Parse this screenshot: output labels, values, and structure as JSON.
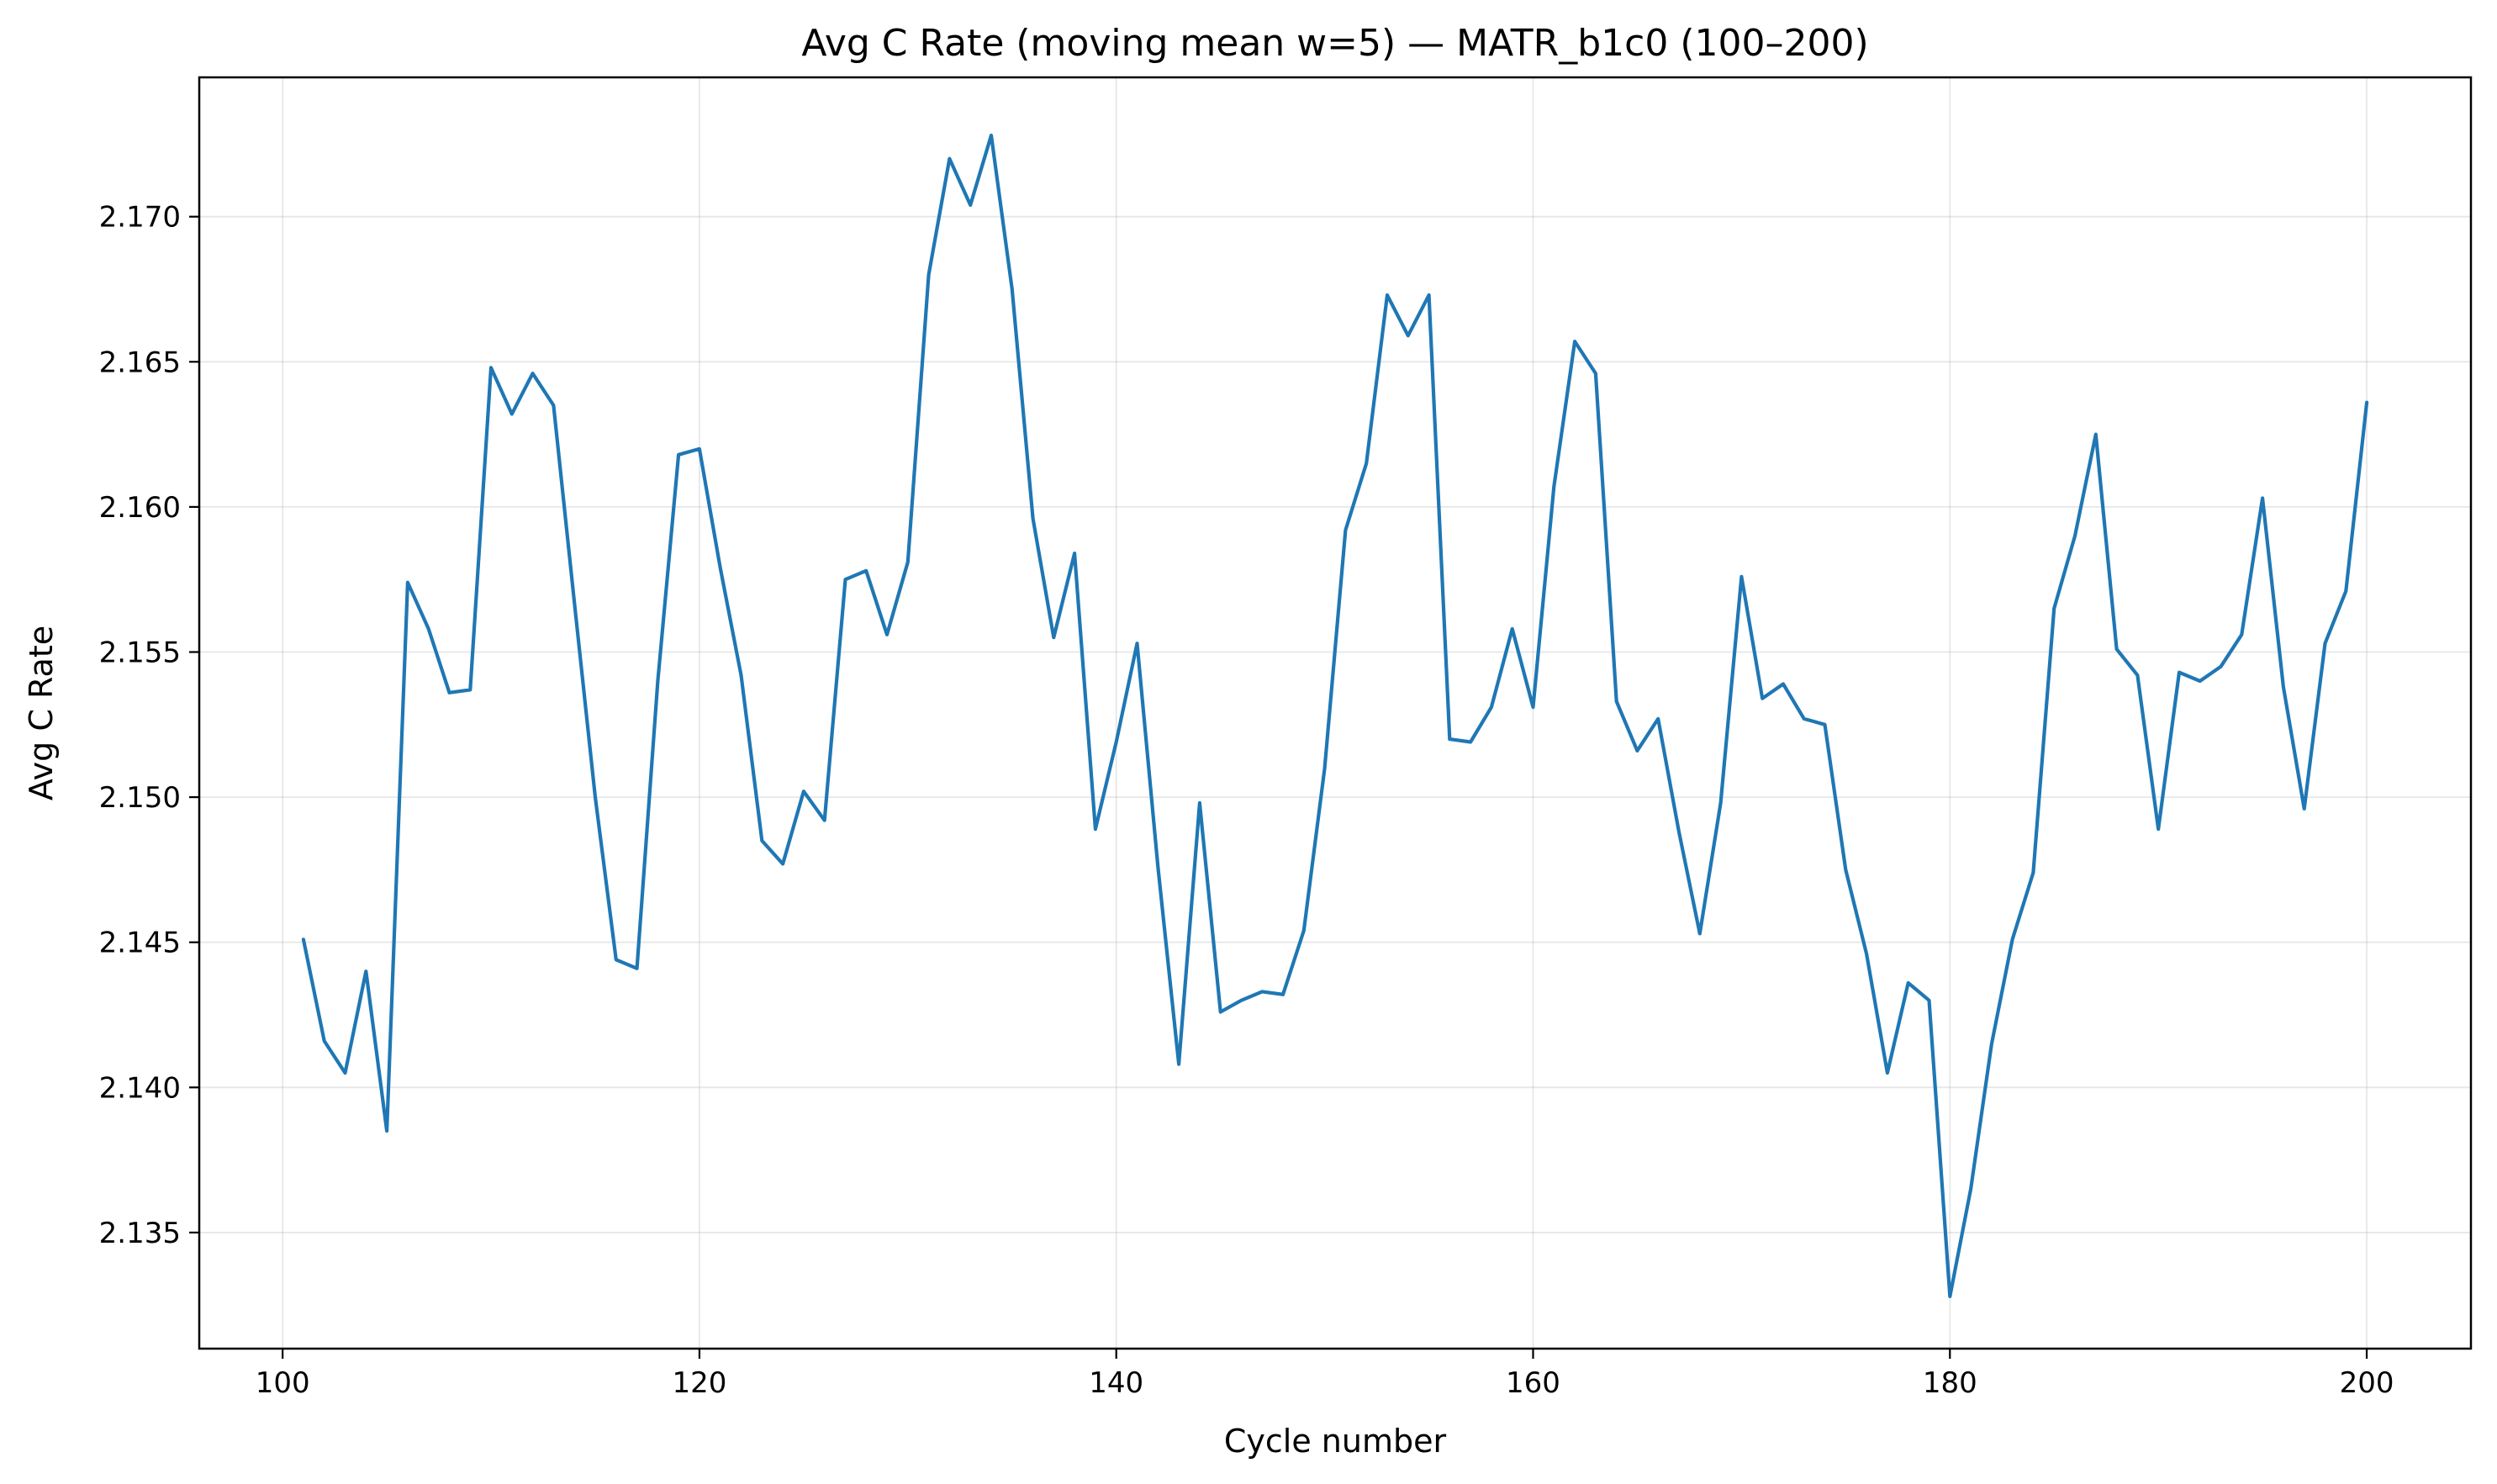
{
  "chart_data": {
    "type": "line",
    "title": "Avg C Rate (moving mean w=5) — MATR_b1c0 (100–200)",
    "xlabel": "Cycle number",
    "ylabel": "Avg C Rate",
    "xlim": [
      96,
      205
    ],
    "ylim": [
      2.131,
      2.1748
    ],
    "x_ticks": [
      100,
      120,
      140,
      160,
      180,
      200
    ],
    "x_tick_labels": [
      "100",
      "120",
      "140",
      "160",
      "180",
      "200"
    ],
    "y_ticks": [
      2.135,
      2.14,
      2.145,
      2.15,
      2.155,
      2.16,
      2.165,
      2.17
    ],
    "y_tick_labels": [
      "2.135",
      "2.140",
      "2.145",
      "2.150",
      "2.155",
      "2.160",
      "2.165",
      "2.170"
    ],
    "grid": true,
    "line_color": "#1f77b4",
    "series": [
      {
        "x": [
          101,
          102,
          103,
          104,
          105,
          106,
          107,
          108,
          109,
          110,
          111,
          112,
          113,
          114,
          115,
          116,
          117,
          118,
          119,
          120,
          121,
          122,
          123,
          124,
          125,
          126,
          127,
          128,
          129,
          130,
          131,
          132,
          133,
          134,
          135,
          136,
          137,
          138,
          139,
          140,
          141,
          142,
          143,
          144,
          145,
          146,
          147,
          148,
          149,
          150,
          151,
          152,
          153,
          154,
          155,
          156,
          157,
          158,
          159,
          160,
          161,
          162,
          163,
          164,
          165,
          166,
          167,
          168,
          169,
          170,
          171,
          172,
          173,
          174,
          175,
          176,
          177,
          178,
          179,
          180,
          181,
          182,
          183,
          184,
          185,
          186,
          187,
          188,
          189,
          190,
          191,
          192,
          193,
          194,
          195,
          196,
          197,
          198,
          199,
          200
        ],
        "values": [
          2.1451,
          2.1416,
          2.1405,
          2.144,
          2.1385,
          2.1574,
          2.1558,
          2.1536,
          2.1537,
          2.1648,
          2.1632,
          2.1646,
          2.1635,
          2.1567,
          2.15,
          2.1444,
          2.1441,
          2.154,
          2.1618,
          2.162,
          2.1579,
          2.1542,
          2.1485,
          2.1477,
          2.1502,
          2.1492,
          2.1575,
          2.1578,
          2.1556,
          2.1581,
          2.168,
          2.172,
          2.1704,
          2.1728,
          2.1675,
          2.1596,
          2.1555,
          2.1584,
          2.1489,
          2.1519,
          2.1553,
          2.1476,
          2.1408,
          2.1498,
          2.1426,
          2.143,
          2.1433,
          2.1432,
          2.1454,
          2.151,
          2.1592,
          2.1615,
          2.1673,
          2.1659,
          2.1673,
          2.152,
          2.1519,
          2.1531,
          2.1558,
          2.1531,
          2.1607,
          2.1657,
          2.1646,
          2.1533,
          2.1516,
          2.1527,
          2.1488,
          2.1453,
          2.1498,
          2.1576,
          2.1534,
          2.1539,
          2.1527,
          2.1525,
          2.1475,
          2.1446,
          2.1405,
          2.1436,
          2.143,
          2.1328,
          2.1365,
          2.1415,
          2.1451,
          2.1474,
          2.1565,
          2.159,
          2.1625,
          2.1551,
          2.1542,
          2.1489,
          2.1543,
          2.154,
          2.1545,
          2.1556,
          2.1603,
          2.1538,
          2.1496,
          2.1553,
          2.1571,
          2.1636
        ]
      }
    ]
  }
}
